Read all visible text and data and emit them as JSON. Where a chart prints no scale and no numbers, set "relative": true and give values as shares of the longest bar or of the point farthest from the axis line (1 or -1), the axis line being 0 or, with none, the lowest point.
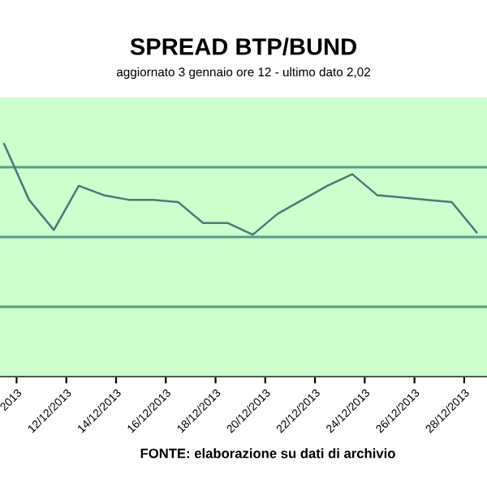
{
  "chart_data": {
    "type": "line",
    "title": "SPREAD BTP/BUND",
    "subtitle": "aggiornato 3 gennaio ore 12 - ultimo dato 2,02",
    "annotations": [
      "FONTE: elaborazione su dati di archivio"
    ],
    "relative": true,
    "legend": false,
    "ref_lines": [
      {
        "axis": "y",
        "value": 0.3,
        "color": "#5a9a8a"
      },
      {
        "axis": "y",
        "value": 0.6,
        "color": "#5a9a8a"
      },
      {
        "axis": "y",
        "value": 0.9,
        "color": "#5a9a8a"
      }
    ],
    "x": [
      "2013-12-09T12:00",
      "2013-12-10T12:00",
      "2013-12-11T12:00",
      "2013-12-12T12:00",
      "2013-12-13T12:00",
      "2013-12-14T12:00",
      "2013-12-15T12:00",
      "2013-12-16T12:00",
      "2013-12-17T12:00",
      "2013-12-18T12:00",
      "2013-12-19T12:00",
      "2013-12-20T12:00",
      "2013-12-21T12:00",
      "2013-12-22T12:00",
      "2013-12-23T12:00",
      "2013-12-24T12:00",
      "2013-12-25T12:00",
      "2013-12-26T12:00",
      "2013-12-27T12:00",
      "2013-12-28T12:00"
    ],
    "xlim": [
      "2013-12-09T08:00",
      "2013-12-28T22:00"
    ],
    "xticks": [
      {
        "value": "2013-12-10",
        "label": "2013"
      },
      {
        "value": "2013-12-12",
        "label": "12/12/2013"
      },
      {
        "value": "2013-12-14",
        "label": "14/12/2013"
      },
      {
        "value": "2013-12-16",
        "label": "16/12/2013"
      },
      {
        "value": "2013-12-18",
        "label": "18/12/2013"
      },
      {
        "value": "2013-12-20",
        "label": "20/12/2013"
      },
      {
        "value": "2013-12-22",
        "label": "22/12/2013"
      },
      {
        "value": "2013-12-24",
        "label": "24/12/2013"
      },
      {
        "value": "2013-12-26",
        "label": "26/12/2013"
      },
      {
        "value": "2013-12-28",
        "label": "28/12/2013"
      }
    ],
    "series": [
      {
        "color": "#4a7a7a",
        "values": [
          1.0,
          0.76,
          0.63,
          0.82,
          0.78,
          0.76,
          0.76,
          0.75,
          0.66,
          0.66,
          0.61,
          0.7,
          0.76,
          0.82,
          0.87,
          0.78,
          0.77,
          0.76,
          0.75,
          0.62
        ]
      }
    ]
  }
}
